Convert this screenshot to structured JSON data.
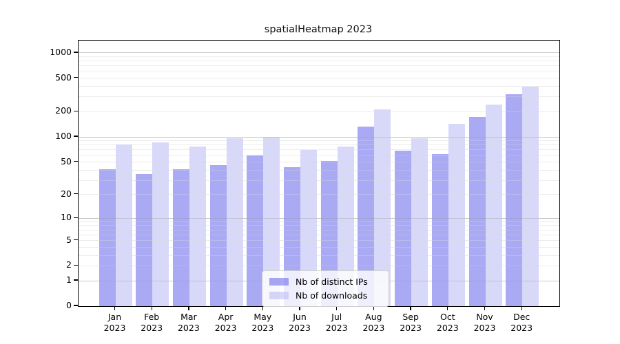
{
  "chart_data": {
    "type": "bar",
    "title": "spatialHeatmap 2023",
    "x_year": "2023",
    "categories": [
      "Jan",
      "Feb",
      "Mar",
      "Apr",
      "May",
      "Jun",
      "Jul",
      "Aug",
      "Sep",
      "Oct",
      "Nov",
      "Dec"
    ],
    "y_scale": "symlog",
    "y_ticks": [
      0,
      1,
      2,
      5,
      10,
      20,
      50,
      100,
      200,
      500,
      1000
    ],
    "y_max": 1400,
    "grid": {
      "major_lines": [
        1,
        10,
        100,
        1000
      ],
      "minor_multipliers": [
        2,
        3,
        4,
        5,
        6,
        7,
        8,
        9
      ],
      "minor_decades": [
        1,
        10,
        100
      ]
    },
    "series": [
      {
        "name": "Nb of distinct IPs",
        "color": "#a9a9f4",
        "color_rgba": "rgba(99,99,235,0.55)",
        "values": [
          41,
          36,
          41,
          46,
          60,
          43,
          51,
          132,
          69,
          62,
          175,
          325
        ]
      },
      {
        "name": "Nb of downloads",
        "color": "#d9d9f8",
        "color_rgba": "rgba(184,184,244,0.55)",
        "values": [
          81,
          86,
          77,
          96,
          100,
          70,
          77,
          212,
          97,
          143,
          245,
          400
        ]
      }
    ],
    "legend_position": "lower center",
    "colors": {
      "grid_minor": "#ececec",
      "grid_major": "#c8c8c8",
      "spine": "#000000",
      "background": "#ffffff",
      "text": "#000000"
    }
  }
}
